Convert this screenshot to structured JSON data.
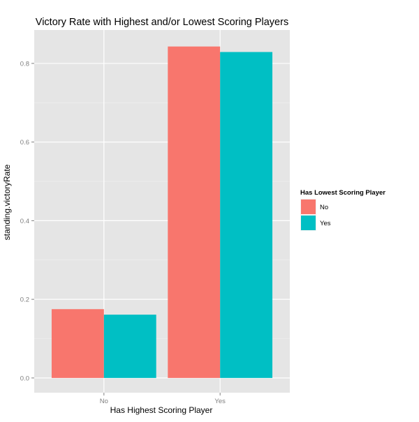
{
  "chart_data": {
    "type": "bar",
    "title": "Victory Rate with Highest and/or Lowest Scoring Players",
    "xlabel": "Has Highest Scoring Player",
    "ylabel": "standing.victoryRate",
    "categories": [
      "No",
      "Yes"
    ],
    "series": [
      {
        "name": "No",
        "values": [
          0.175,
          0.843
        ]
      },
      {
        "name": "Yes",
        "values": [
          0.161,
          0.829
        ]
      }
    ],
    "ylim": [
      -0.0375,
      0.885
    ],
    "yticks": [
      0.0,
      0.2,
      0.4,
      0.6,
      0.8
    ],
    "ytick_labels": [
      "0.0",
      "0.2",
      "0.4",
      "0.6",
      "0.8"
    ],
    "legend": {
      "title": "Has Lowest Scoring Player",
      "placement": "right",
      "entries": [
        "No",
        "Yes"
      ]
    },
    "grid": true,
    "colors": {
      "series": [
        "#F8766D",
        "#00BFC4"
      ],
      "panel_background": "#E5E5E5",
      "grid_major": "#FFFFFF",
      "grid_minor": "#F2F2F2"
    }
  }
}
